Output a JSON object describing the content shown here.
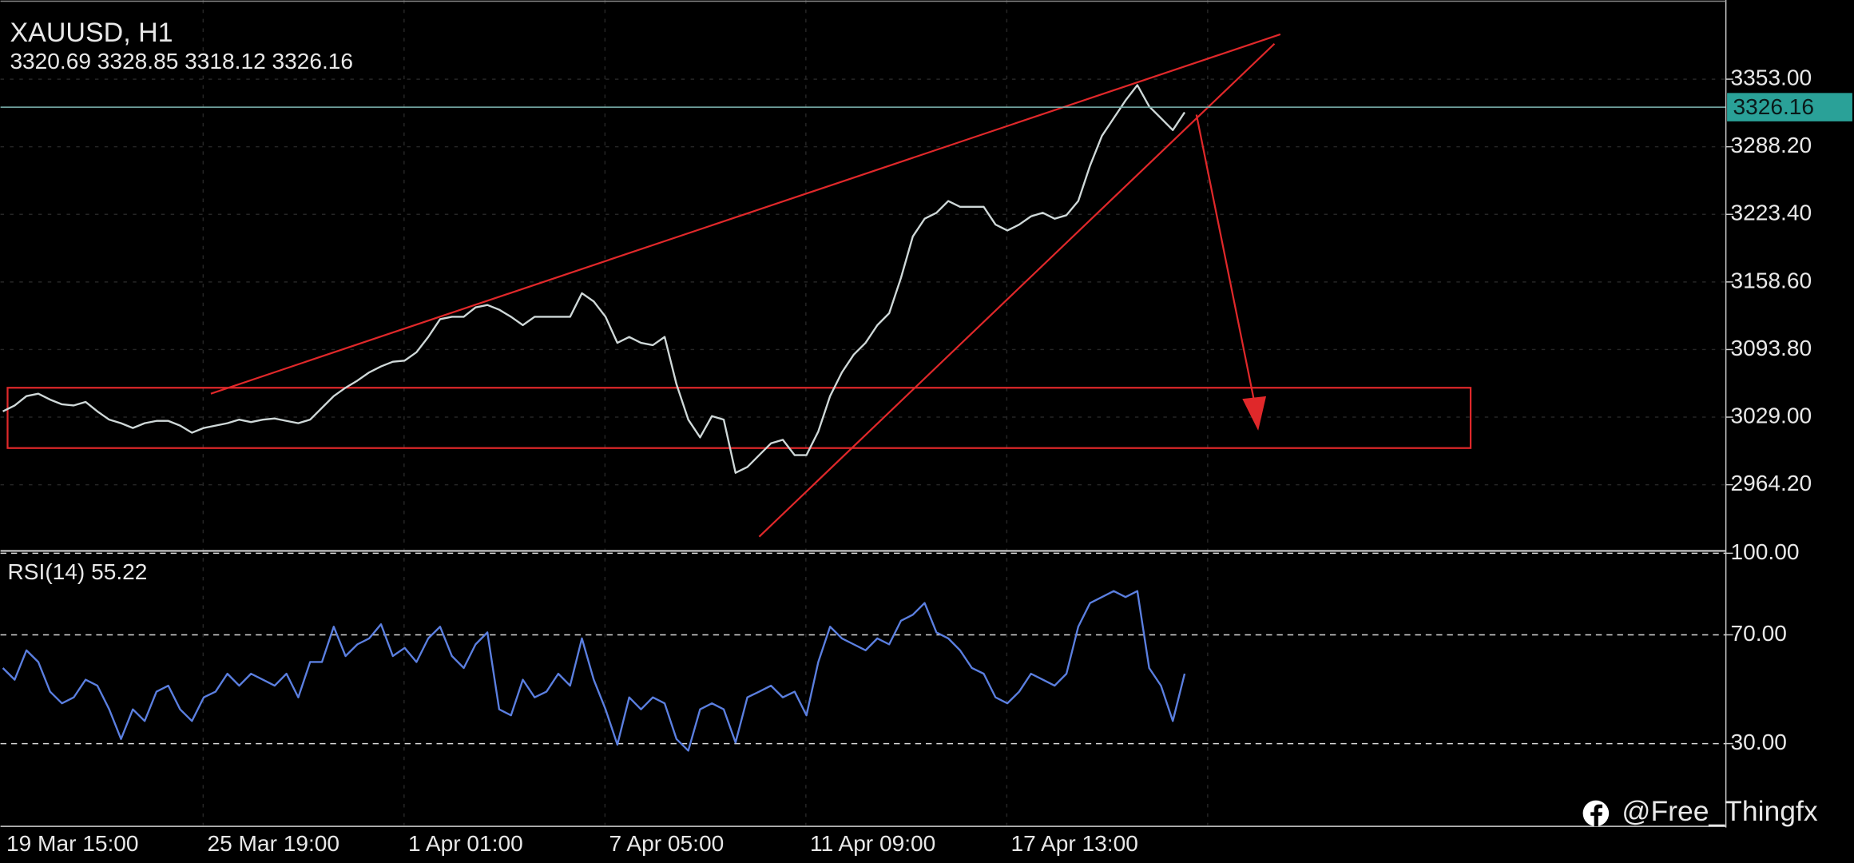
{
  "chart_data": [
    {
      "type": "line",
      "title": "XAUUSD, H1",
      "subtitle": "3320.69 3328.85 3318.12 3326.16",
      "values": [
        3034.5,
        3040.2,
        3049.2,
        3051.5,
        3045.8,
        3041.3,
        3040.2,
        3043.6,
        3034.5,
        3026.6,
        3023.2,
        3018.6,
        3023.2,
        3025.4,
        3025.4,
        3020.9,
        3014.1,
        3018.6,
        3020.9,
        3023.2,
        3026.6,
        3024.3,
        3026.6,
        3027.7,
        3025.4,
        3023.2,
        3026.6,
        3037.9,
        3049.2,
        3057.2,
        3064.0,
        3071.9,
        3077.6,
        3082.1,
        3083.2,
        3091.2,
        3105.9,
        3122.9,
        3125.2,
        3125.2,
        3134.2,
        3136.5,
        3132.0,
        3125.2,
        3117.2,
        3125.2,
        3125.2,
        3125.2,
        3125.2,
        3147.8,
        3139.9,
        3125.2,
        3100.2,
        3105.9,
        3100.2,
        3098.0,
        3105.9,
        3060.6,
        3026.6,
        3009.6,
        3030.0,
        3026.6,
        2975.6,
        2981.2,
        2992.6,
        3003.9,
        3007.3,
        2992.6,
        2992.6,
        3015.2,
        3049.2,
        3071.9,
        3088.9,
        3100.2,
        3117.2,
        3128.6,
        3162.6,
        3202.2,
        3219.2,
        3224.9,
        3236.2,
        3230.6,
        3230.6,
        3230.6,
        3213.6,
        3207.9,
        3213.6,
        3221.5,
        3224.9,
        3219.2,
        3222.6,
        3236.2,
        3270.2,
        3298.6,
        3315.6,
        3332.6,
        3347.3,
        3326.9,
        3315.6,
        3304.2,
        3321.2
      ],
      "color": "#cfd8d8",
      "ylim": [
        2901.9,
        3428.9
      ],
      "yticks": [
        {
          "value": 3353,
          "label": "3353.00"
        },
        {
          "value": 3288.2,
          "label": "3288.20"
        },
        {
          "value": 3223.4,
          "label": "3223.40"
        },
        {
          "value": 3158.6,
          "label": "3158.60"
        },
        {
          "value": 3093.8,
          "label": "3093.80"
        },
        {
          "value": 3029,
          "label": "3029.00"
        },
        {
          "value": 2964.2,
          "label": "2964.20"
        }
      ],
      "last_price": 3326.16,
      "grid": true
    },
    {
      "type": "line",
      "title": "RSI(14) 55.22",
      "categories": [
        "19 Mar 15:00",
        null,
        null,
        null,
        null,
        null,
        null,
        null,
        null,
        null,
        null,
        null,
        null,
        null,
        null,
        null,
        null,
        "25 Mar 19:00",
        null,
        null,
        null,
        null,
        null,
        null,
        null,
        null,
        null,
        null,
        null,
        null,
        null,
        null,
        null,
        null,
        "1 Apr 01:00",
        null,
        null,
        null,
        null,
        null,
        null,
        null,
        null,
        null,
        null,
        null,
        null,
        null,
        null,
        null,
        null,
        "7 Apr 05:00",
        null,
        null,
        null,
        null,
        null,
        null,
        null,
        null,
        null,
        null,
        null,
        null,
        null,
        null,
        null,
        null,
        "11 Apr 09:00",
        null,
        null,
        null,
        null,
        null,
        null,
        null,
        null,
        null,
        null,
        null,
        null,
        null,
        null,
        null,
        null,
        "17 Apr 13:00",
        null,
        null,
        null,
        null,
        null,
        null,
        null,
        null,
        null,
        null,
        null,
        null,
        null,
        null,
        null
      ],
      "values": [
        57.8,
        53.5,
        64.3,
        60,
        49.1,
        44.8,
        47,
        53.5,
        51.3,
        42.6,
        31.7,
        42.6,
        38.3,
        49.1,
        51.3,
        42.6,
        38.3,
        47,
        49.1,
        55.7,
        51.3,
        55.7,
        53.5,
        51.3,
        55.7,
        47,
        60,
        60,
        73,
        62.2,
        66.5,
        68.7,
        73.9,
        62.2,
        65.2,
        60,
        68.7,
        73,
        62.2,
        57.8,
        66.5,
        70.9,
        42.6,
        40.4,
        53.5,
        47,
        49.1,
        55.7,
        51.3,
        68.7,
        53.5,
        42.6,
        29.6,
        47,
        42.6,
        47,
        44.8,
        31.7,
        27.4,
        42.6,
        44.8,
        42.6,
        30.4,
        47,
        49.1,
        51.3,
        47,
        49.1,
        40.4,
        60,
        73,
        68.7,
        66.5,
        64.3,
        68.7,
        66.5,
        75.2,
        77.4,
        81.7,
        70.9,
        68.7,
        64.3,
        57.8,
        55.7,
        47,
        44.8,
        49.1,
        55.7,
        53.5,
        51.3,
        55.7,
        73,
        81.7,
        83.9,
        86.1,
        83.9,
        86.1,
        57.8,
        51.3,
        38.3,
        55.7
      ],
      "color": "#5b7fe0",
      "ylim": [
        0,
        100
      ],
      "yticks": [
        {
          "value": 100,
          "label": "100.00"
        },
        {
          "value": 70,
          "label": "70.00"
        },
        {
          "value": 30,
          "label": "30.00"
        }
      ],
      "grid": true
    }
  ],
  "watermark": "@Free_Thingfx"
}
